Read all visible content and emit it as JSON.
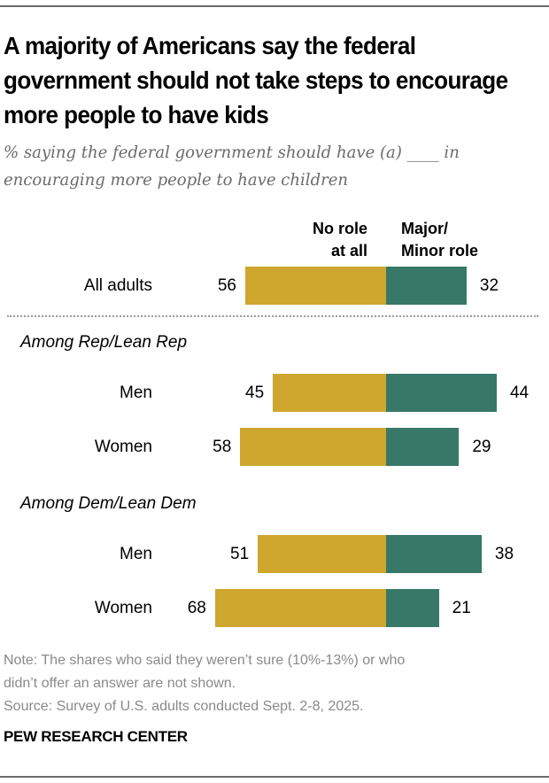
{
  "chart_data": {
    "type": "bar",
    "orientation": "horizontal-diverging",
    "title": "A majority of Americans say the federal government should not take steps to encourage more people to have kids",
    "subtitle": "% saying the federal government should have (a) ____ in encouraging more people to have children",
    "legend": [
      {
        "name": "No role at all",
        "color": "#cfa72f"
      },
      {
        "name": "Major/ Minor role",
        "color": "#387868"
      }
    ],
    "groups": [
      {
        "label": "",
        "rows": [
          {
            "label": "All adults",
            "no_role": 56,
            "role": 32
          }
        ]
      },
      {
        "label": "Among Rep/Lean Rep",
        "rows": [
          {
            "label": "Men",
            "no_role": 45,
            "role": 44
          },
          {
            "label": "Women",
            "no_role": 58,
            "role": 29
          }
        ]
      },
      {
        "label": "Among Dem/Lean Dem",
        "rows": [
          {
            "label": "Men",
            "no_role": 51,
            "role": 38
          },
          {
            "label": "Women",
            "no_role": 68,
            "role": 21
          }
        ]
      }
    ]
  },
  "header": {
    "title": "A majority of Americans say the federal government should not take steps to encourage more people to have kids",
    "subtitle": "% saying the federal government should have (a) ____ in encouraging more people to have children"
  },
  "legend": {
    "no_role_line1": "No role",
    "no_role_line2": "at all",
    "role_line1": "Major/",
    "role_line2": "Minor role"
  },
  "footer": {
    "note_line1": "Note: The shares who said they weren’t sure (10%-13%) or who",
    "note_line2": "didn’t offer an answer are not shown.",
    "source": "Source: Survey of U.S. adults conducted Sept. 2-8, 2025.",
    "brand": "PEW RESEARCH CENTER"
  }
}
